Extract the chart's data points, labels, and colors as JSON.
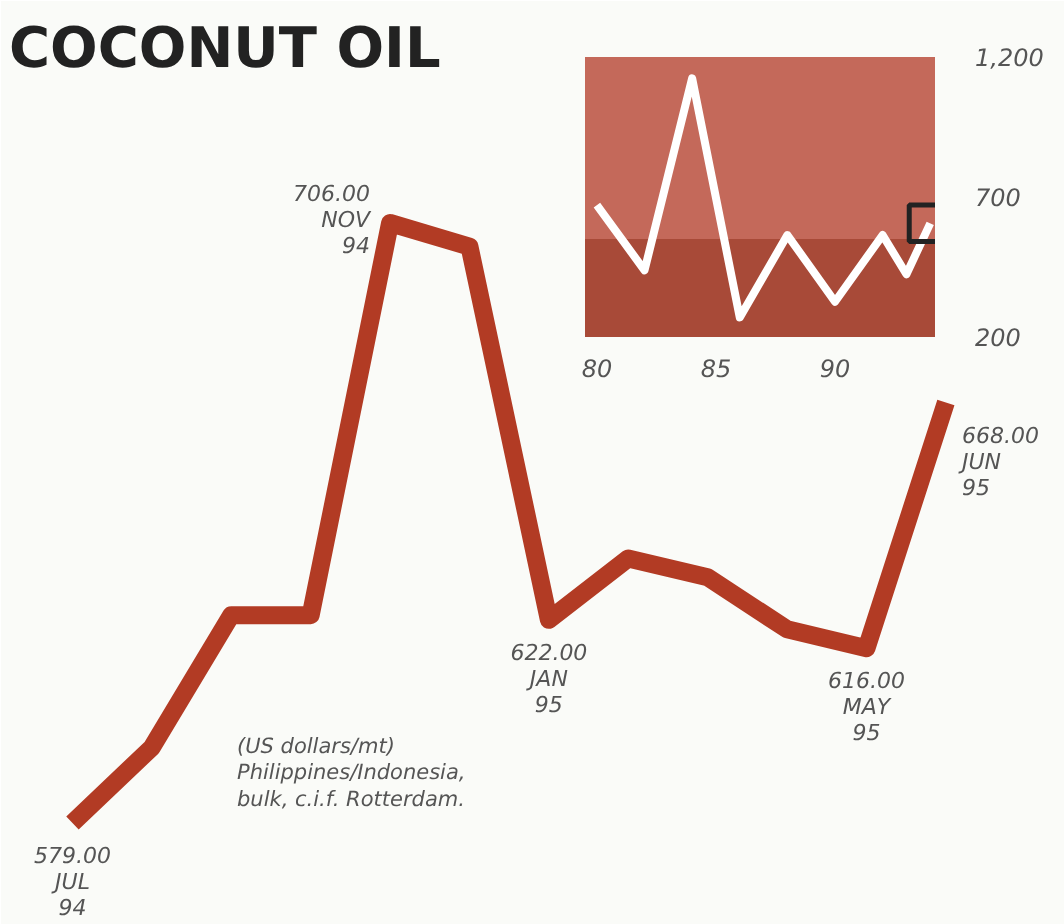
{
  "chart_data": [
    {
      "type": "line",
      "title": "COCONUT OIL",
      "categories": [
        null,
        null,
        null,
        null,
        null,
        null,
        null,
        null,
        null,
        null,
        null,
        null
      ],
      "series": [
        {
          "color": "#b23b24",
          "values": [
            579,
            595,
            623,
            623,
            706,
            701,
            622,
            635,
            631,
            620,
            616,
            668
          ],
          "value_labels": [
            "579.00",
            null,
            null,
            null,
            "706.00",
            null,
            "622.00",
            null,
            null,
            null,
            "616.00",
            "668.00"
          ]
        }
      ],
      "annotations": [
        "(US dollars/mt)\nPhilippines/Indonesia,\nbulk, c.i.f. Rotterdam.",
        "JUL 94",
        "NOV 94",
        "JAN 95",
        "MAY 95",
        "JUN 95"
      ]
    },
    {
      "type": "line",
      "x": [
        80,
        82,
        84,
        86,
        88,
        90,
        92,
        93,
        94
      ],
      "series": [
        {
          "color": "#ffffff",
          "values": [
            671,
            438,
            1124,
            270,
            564,
            326,
            564,
            424,
            606
          ]
        }
      ],
      "xlim": [
        79.5,
        94.2
      ],
      "ylim": [
        200,
        1200
      ],
      "xticks": [
        80,
        85,
        90
      ],
      "yticks": [
        200,
        700,
        {
          "value": 1200,
          "label": "1,200"
        }
      ],
      "bands": [
        {
          "axis": "y",
          "from": 200,
          "to": 550,
          "color": "#a84a38"
        },
        {
          "axis": "y",
          "from": 550,
          "to": 1200,
          "color": "#c4695a"
        }
      ]
    }
  ]
}
